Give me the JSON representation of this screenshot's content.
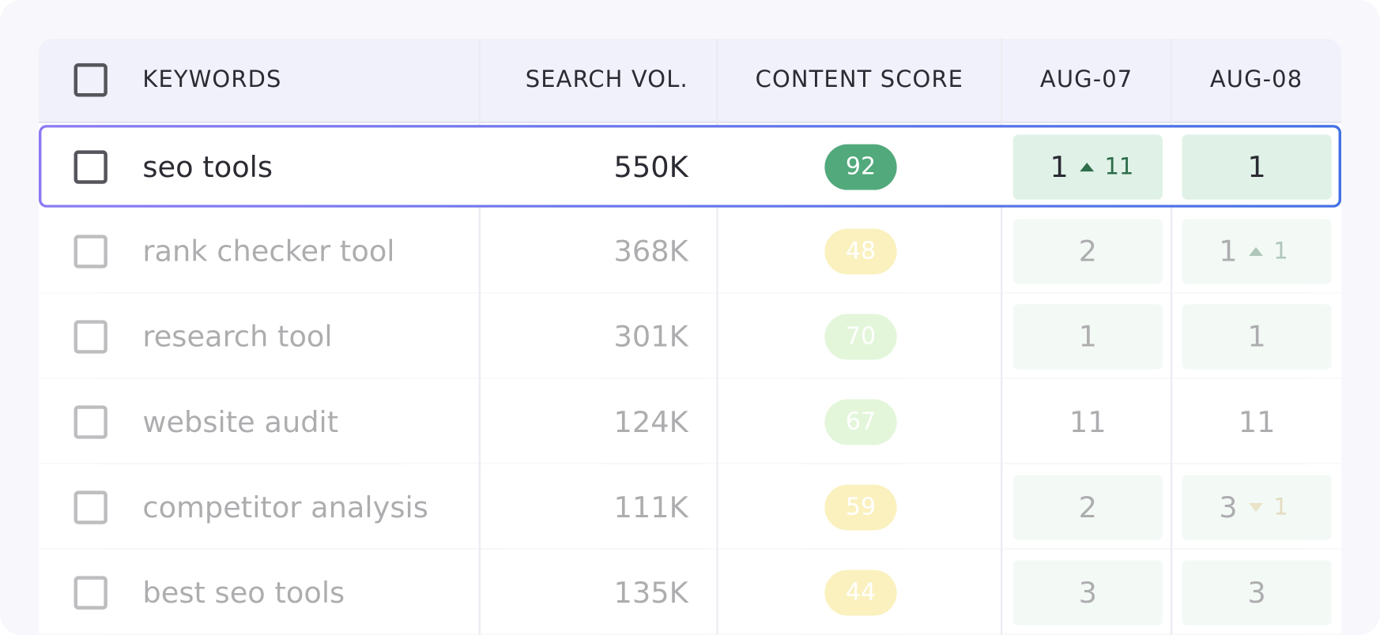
{
  "table": {
    "headers": [
      "KEYWORDS",
      "SEARCH VOL.",
      "CONTENT SCORE",
      "AUG-07",
      "AUG-08"
    ],
    "rows": [
      {
        "keyword": "seo tools",
        "volume": "550K",
        "score": 92,
        "score_color": "#52a97c",
        "selected": true,
        "ranks": [
          {
            "rank": 1,
            "change": 11,
            "trend": "up",
            "highlight": true
          },
          {
            "rank": 1,
            "highlight": true
          }
        ]
      },
      {
        "keyword": "rank checker tool",
        "volume": "368K",
        "score": 48,
        "score_color": "#f3dc5a",
        "selected": false,
        "ranks": [
          {
            "rank": 2,
            "highlight": true
          },
          {
            "rank": 1,
            "change": 1,
            "trend": "up",
            "highlight": true
          }
        ]
      },
      {
        "keyword": "research tool",
        "volume": "301K",
        "score": 70,
        "score_color": "#b8e8a0",
        "selected": false,
        "ranks": [
          {
            "rank": 1,
            "highlight": true
          },
          {
            "rank": 1,
            "highlight": true
          }
        ]
      },
      {
        "keyword": "website audit",
        "volume": "124K",
        "score": 67,
        "score_color": "#b8e8a0",
        "selected": false,
        "ranks": [
          {
            "rank": 11,
            "highlight": false
          },
          {
            "rank": 11,
            "highlight": false
          }
        ]
      },
      {
        "keyword": "competitor analysis",
        "volume": "111K",
        "score": 59,
        "score_color": "#f3dc5a",
        "selected": false,
        "ranks": [
          {
            "rank": 2,
            "highlight": true
          },
          {
            "rank": 3,
            "change": 1,
            "trend": "down",
            "highlight": true
          }
        ]
      },
      {
        "keyword": "best seo tools",
        "volume": "135K",
        "score": 44,
        "score_color": "#f3dc5a",
        "selected": false,
        "ranks": [
          {
            "rank": 3,
            "highlight": true
          },
          {
            "rank": 3,
            "highlight": true
          }
        ]
      }
    ]
  }
}
